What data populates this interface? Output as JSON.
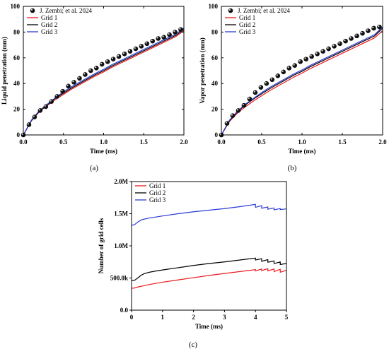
{
  "chart_data": [
    {
      "type": "line",
      "panel_label": "(a)",
      "xlabel": "Time (ms)",
      "ylabel": "Liquid penetration (mm)",
      "xlim": [
        0,
        2.0
      ],
      "ylim": [
        0,
        100
      ],
      "xticks": [
        "0.0",
        "0.5",
        "1.0",
        "1.5",
        "2.0"
      ],
      "yticks": [
        "0",
        "20",
        "40",
        "60",
        "80",
        "100"
      ],
      "legend_position": "top-left",
      "grid": false,
      "scatter_series": {
        "name": "J. Zembi; et al. 2024",
        "x": [
          0.0,
          0.07,
          0.14,
          0.21,
          0.28,
          0.35,
          0.42,
          0.49,
          0.56,
          0.63,
          0.7,
          0.77,
          0.84,
          0.91,
          0.98,
          1.05,
          1.12,
          1.19,
          1.26,
          1.33,
          1.4,
          1.47,
          1.54,
          1.61,
          1.68,
          1.75,
          1.82,
          1.89,
          1.96
        ],
        "y": [
          0,
          8,
          14,
          19,
          22,
          26,
          30,
          34,
          38,
          41,
          44,
          47,
          50,
          52,
          55,
          57,
          59,
          61,
          63,
          65,
          67,
          69,
          71,
          73,
          75,
          76,
          78,
          80,
          82
        ]
      },
      "series": [
        {
          "name": "Grid 1",
          "color": "#e8191c",
          "x": [
            0,
            0.1,
            0.2,
            0.3,
            0.4,
            0.5,
            0.6,
            0.7,
            0.8,
            0.9,
            1.0,
            1.1,
            1.2,
            1.3,
            1.4,
            1.5,
            1.6,
            1.7,
            1.8,
            1.9,
            2.0
          ],
          "y": [
            0,
            11,
            18,
            23,
            27.5,
            31.5,
            35.5,
            39,
            42.5,
            46,
            49,
            52.5,
            55.5,
            58.5,
            61.5,
            64.5,
            67.5,
            70.5,
            73.5,
            76.5,
            81
          ]
        },
        {
          "name": "Grid 2",
          "color": "#000000",
          "x": [
            0,
            0.1,
            0.2,
            0.3,
            0.4,
            0.5,
            0.6,
            0.7,
            0.8,
            0.9,
            1.0,
            1.1,
            1.2,
            1.3,
            1.4,
            1.5,
            1.6,
            1.7,
            1.8,
            1.9,
            2.0
          ],
          "y": [
            0,
            11,
            18.5,
            23.5,
            28.5,
            32.5,
            36.5,
            40,
            43.5,
            47,
            50,
            53.5,
            56.5,
            59.5,
            62.5,
            65.5,
            68.5,
            71.5,
            74.5,
            77.5,
            82
          ]
        },
        {
          "name": "Grid 3",
          "color": "#2a3bd8",
          "x": [
            0,
            0.1,
            0.2,
            0.3,
            0.4,
            0.5,
            0.6,
            0.7,
            0.8,
            0.9,
            1.0,
            1.1,
            1.2,
            1.3,
            1.4,
            1.5,
            1.6,
            1.7,
            1.8,
            1.9,
            2.0
          ],
          "y": [
            0,
            11.5,
            19,
            24,
            29,
            33.5,
            37.5,
            41,
            44.5,
            48,
            51,
            54.5,
            57.5,
            60.5,
            63.5,
            66.5,
            69.5,
            72.5,
            75.5,
            78.5,
            83
          ]
        }
      ]
    },
    {
      "type": "line",
      "panel_label": "(b)",
      "xlabel": "Time (ms)",
      "ylabel": "Vapor penetration (mm)",
      "xlim": [
        0,
        2.0
      ],
      "ylim": [
        0,
        100
      ],
      "xticks": [
        "0.0",
        "0.5",
        "1.0",
        "1.5",
        "2.0"
      ],
      "yticks": [
        "0",
        "20",
        "40",
        "60",
        "80",
        "100"
      ],
      "legend_position": "top-left",
      "grid": false,
      "scatter_series": {
        "name": "J. Zembi; et al. 2024",
        "x": [
          0.0,
          0.07,
          0.14,
          0.21,
          0.28,
          0.35,
          0.42,
          0.49,
          0.56,
          0.63,
          0.7,
          0.77,
          0.84,
          0.91,
          0.98,
          1.05,
          1.12,
          1.19,
          1.26,
          1.33,
          1.4,
          1.47,
          1.54,
          1.61,
          1.68,
          1.75,
          1.82,
          1.89,
          1.96
        ],
        "y": [
          0,
          9,
          15,
          19,
          23,
          28,
          33,
          37,
          40,
          43,
          46,
          49,
          52,
          54,
          57,
          59,
          61,
          63,
          65,
          67,
          69,
          71,
          73,
          75,
          77,
          79,
          81,
          83,
          84
        ]
      },
      "series": [
        {
          "name": "Grid 1",
          "color": "#e8191c",
          "x": [
            0,
            0.1,
            0.2,
            0.3,
            0.4,
            0.5,
            0.6,
            0.7,
            0.8,
            0.9,
            1.0,
            1.1,
            1.2,
            1.3,
            1.4,
            1.5,
            1.6,
            1.7,
            1.8,
            1.9,
            2.0
          ],
          "y": [
            0,
            10.5,
            17,
            22,
            26.5,
            30.5,
            34.5,
            38,
            41.5,
            45,
            48,
            51.5,
            54.5,
            57.5,
            60.5,
            63.5,
            66.5,
            69.5,
            72.5,
            75.5,
            81
          ]
        },
        {
          "name": "Grid 2",
          "color": "#000000",
          "x": [
            0,
            0.1,
            0.2,
            0.3,
            0.4,
            0.5,
            0.6,
            0.7,
            0.8,
            0.9,
            1.0,
            1.1,
            1.2,
            1.3,
            1.4,
            1.5,
            1.6,
            1.7,
            1.8,
            1.9,
            2.0
          ],
          "y": [
            0,
            11,
            18,
            23.5,
            28,
            32,
            36,
            39.5,
            43,
            46.5,
            49.5,
            53,
            56,
            59,
            62,
            65,
            68,
            71,
            74,
            77,
            83
          ]
        },
        {
          "name": "Grid 3",
          "color": "#2a3bd8",
          "x": [
            0,
            0.1,
            0.2,
            0.3,
            0.4,
            0.5,
            0.6,
            0.7,
            0.8,
            0.9,
            1.0,
            1.1,
            1.2,
            1.3,
            1.4,
            1.5,
            1.6,
            1.7,
            1.8,
            1.9,
            2.0
          ],
          "y": [
            0,
            11.5,
            18.5,
            24,
            28.5,
            33,
            37,
            40.5,
            44,
            47.5,
            50.5,
            54,
            57,
            60,
            63,
            66,
            69,
            72,
            75,
            78,
            84
          ]
        }
      ]
    },
    {
      "type": "line",
      "panel_label": "(c)",
      "xlabel": "Time (ms)",
      "ylabel": "Number of grid cells",
      "xlim": [
        0,
        5
      ],
      "ylim": [
        0,
        2000000
      ],
      "xticks": [
        "0",
        "1",
        "2",
        "3",
        "4",
        "5"
      ],
      "yticks": [
        "0.0",
        "500.0k",
        "1.0M",
        "1.5M",
        "2.0M"
      ],
      "legend_position": "top-left",
      "grid": false,
      "series": [
        {
          "name": "Grid 1",
          "color": "#e8191c",
          "x": [
            0,
            0.1,
            0.2,
            0.4,
            0.6,
            0.8,
            1.0,
            1.5,
            2.0,
            2.5,
            3.0,
            3.5,
            4.0,
            4.0,
            4.2,
            4.2,
            4.4,
            4.4,
            4.6,
            4.6,
            4.8,
            4.8,
            5.0
          ],
          "y": [
            340000,
            345000,
            360000,
            380000,
            400000,
            418000,
            435000,
            470000,
            505000,
            540000,
            570000,
            600000,
            630000,
            610000,
            640000,
            615000,
            645000,
            610000,
            640000,
            600000,
            635000,
            590000,
            620000
          ]
        },
        {
          "name": "Grid 2",
          "color": "#000000",
          "x": [
            0,
            0.1,
            0.2,
            0.3,
            0.4,
            0.5,
            0.6,
            0.8,
            1.0,
            1.5,
            2.0,
            2.5,
            3.0,
            3.5,
            4.0,
            4.0,
            4.2,
            4.2,
            4.4,
            4.4,
            4.6,
            4.6,
            4.8,
            4.8,
            5.0
          ],
          "y": [
            460000,
            465000,
            500000,
            540000,
            565000,
            580000,
            592000,
            610000,
            625000,
            660000,
            695000,
            725000,
            750000,
            780000,
            810000,
            780000,
            800000,
            760000,
            785000,
            745000,
            765000,
            725000,
            750000,
            710000,
            725000
          ]
        },
        {
          "name": "Grid 3",
          "color": "#2a3bd8",
          "x": [
            0,
            0.1,
            0.2,
            0.3,
            0.4,
            0.5,
            0.6,
            0.8,
            1.0,
            1.5,
            2.0,
            2.5,
            3.0,
            3.5,
            4.0,
            4.0,
            4.2,
            4.2,
            4.4,
            4.4,
            4.6,
            4.6,
            4.8,
            4.8,
            5.0
          ],
          "y": [
            1320000,
            1330000,
            1370000,
            1400000,
            1415000,
            1425000,
            1435000,
            1450000,
            1465000,
            1500000,
            1530000,
            1555000,
            1580000,
            1610000,
            1645000,
            1600000,
            1625000,
            1585000,
            1605000,
            1570000,
            1590000,
            1560000,
            1580000,
            1565000,
            1575000
          ]
        }
      ]
    }
  ]
}
